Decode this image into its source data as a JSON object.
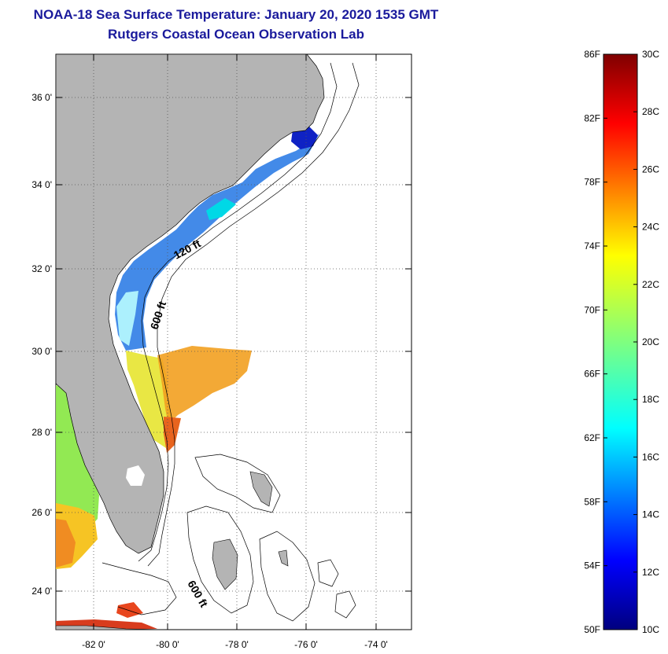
{
  "title": "NOAA-18 Sea Surface Temperature:  January 20, 2020 1535 GMT",
  "subtitle": "Rutgers Coastal Ocean Observation Lab",
  "map": {
    "lat_labels": [
      "36 0'",
      "34 0'",
      "32 0'",
      "30 0'",
      "28 0'",
      "26 0'",
      "24 0'"
    ],
    "lon_labels": [
      "-82 0'",
      "-80 0'",
      "-78 0'",
      "-76 0'",
      "-74 0'"
    ],
    "contour_labels": [
      "120 ft",
      "600 ft",
      "600 ft"
    ],
    "land_color": "#b4b4b4"
  },
  "colorbar": {
    "f_labels": [
      "86F",
      "82F",
      "78F",
      "74F",
      "70F",
      "66F",
      "62F",
      "58F",
      "54F",
      "50F"
    ],
    "c_labels": [
      "30C",
      "28C",
      "26C",
      "24C",
      "22C",
      "20C",
      "18C",
      "16C",
      "14C",
      "12C",
      "10C"
    ],
    "min_c": 10,
    "max_c": 30
  }
}
